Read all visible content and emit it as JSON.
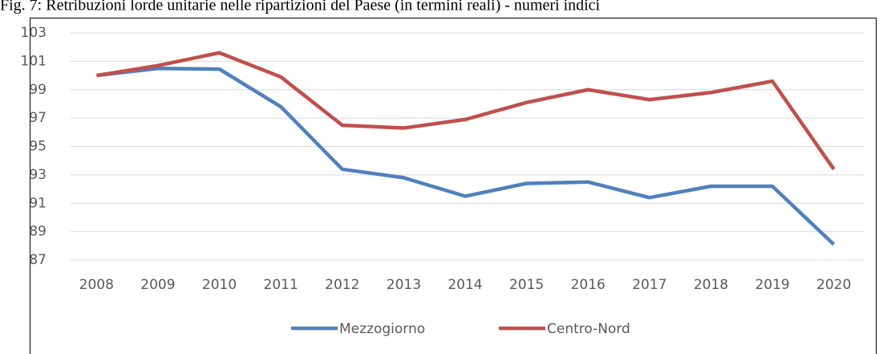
{
  "chart_data": {
    "type": "line",
    "title": "Fig. 7: Retribuzioni lorde unitarie nelle ripartizioni del Paese (in termini reali) - numeri indici",
    "categories": [
      "2008",
      "2009",
      "2010",
      "2011",
      "2012",
      "2013",
      "2014",
      "2015",
      "2016",
      "2017",
      "2018",
      "2019",
      "2020"
    ],
    "series": [
      {
        "name": "Mezzogiorno",
        "color": "#4f81bd",
        "values": [
          100,
          100.5,
          100.45,
          97.8,
          93.4,
          92.8,
          91.5,
          92.4,
          92.5,
          91.4,
          92.2,
          92.2,
          88.1
        ]
      },
      {
        "name": "Centro-Nord",
        "color": "#c0504d",
        "values": [
          100,
          100.7,
          101.6,
          99.9,
          96.5,
          96.3,
          96.9,
          98.1,
          99.0,
          98.3,
          98.8,
          99.6,
          93.4
        ]
      }
    ],
    "ylim": [
      87,
      103
    ],
    "yticks": [
      87,
      89,
      91,
      93,
      95,
      97,
      99,
      101,
      103
    ],
    "grid": true,
    "legend": "bottom"
  }
}
